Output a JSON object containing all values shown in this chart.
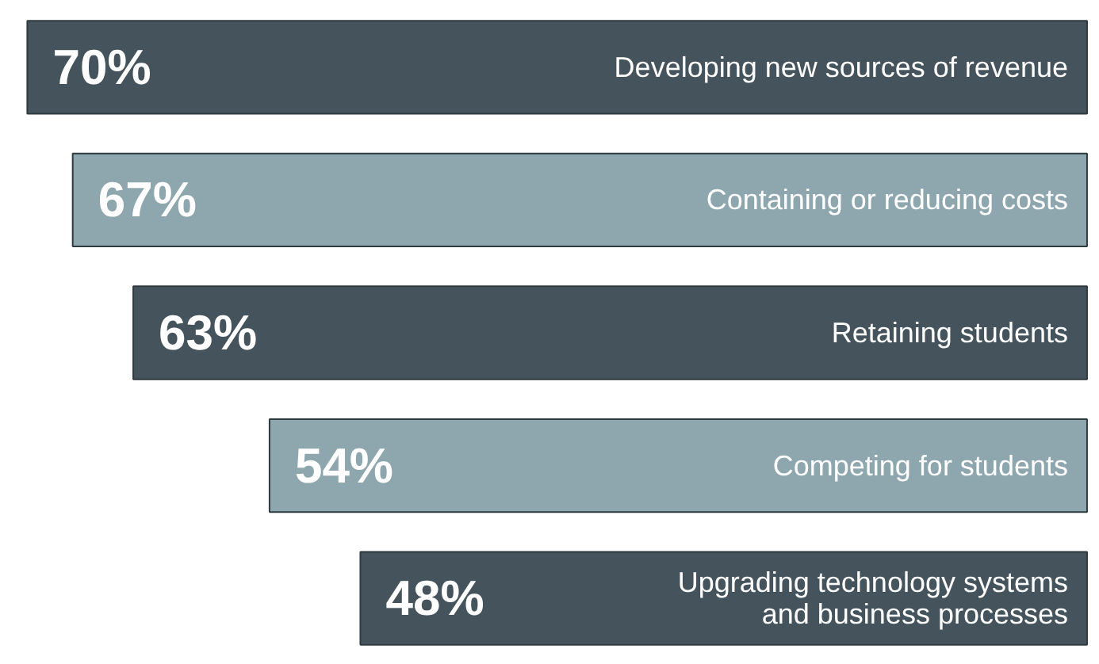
{
  "chart_data": {
    "type": "bar",
    "orientation": "horizontal",
    "relative": false,
    "categories": [
      "Developing new sources of revenue",
      "Containing or reducing costs",
      "Retaining students",
      "Competing for students",
      "Upgrading technology systems\nand business processes"
    ],
    "values": [
      70,
      67,
      63,
      54,
      48
    ],
    "colors": [
      "#45545c",
      "#8ea6ae",
      "#45545c",
      "#8ea6ae",
      "#45545c"
    ],
    "value_labels": [
      "70%",
      "67%",
      "63%",
      "54%",
      "48%"
    ]
  }
}
